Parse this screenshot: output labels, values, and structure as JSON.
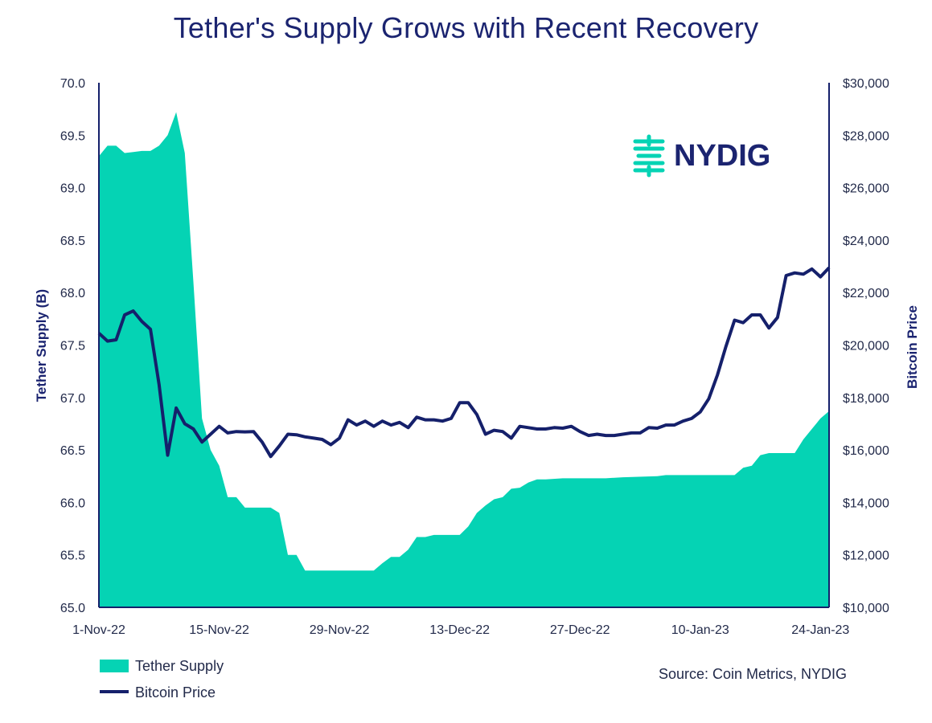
{
  "chart_data": {
    "type": "area",
    "title": "Tether's Supply Grows with Recent Recovery",
    "ylabel_left": "Tether Supply (B)",
    "ylabel_right": "Bitcoin Price",
    "ylim_left": [
      65.0,
      70.0
    ],
    "ylim_right": [
      10000,
      30000
    ],
    "yticks_left": [
      "70.0",
      "69.5",
      "69.0",
      "68.5",
      "68.0",
      "67.5",
      "67.0",
      "66.5",
      "66.0",
      "65.5",
      "65.0"
    ],
    "yticks_right": [
      "$30,000",
      "$28,000",
      "$26,000",
      "$24,000",
      "$22,000",
      "$20,000",
      "$18,000",
      "$16,000",
      "$14,000",
      "$12,000",
      "$10,000"
    ],
    "xticks": [
      "1-Nov-22",
      "15-Nov-22",
      "29-Nov-22",
      "13-Dec-22",
      "27-Dec-22",
      "10-Jan-23",
      "24-Jan-23"
    ],
    "x_start": "2022-11-01",
    "x_end": "2023-01-25",
    "series": [
      {
        "name": "Tether Supply",
        "axis": "left",
        "color": "#05d3b4",
        "points": [
          [
            "2022-11-01",
            69.3
          ],
          [
            "2022-11-02",
            69.4
          ],
          [
            "2022-11-03",
            69.4
          ],
          [
            "2022-11-04",
            69.33
          ],
          [
            "2022-11-05",
            69.34
          ],
          [
            "2022-11-06",
            69.35
          ],
          [
            "2022-11-07",
            69.35
          ],
          [
            "2022-11-08",
            69.4
          ],
          [
            "2022-11-09",
            69.5
          ],
          [
            "2022-11-10",
            69.72
          ],
          [
            "2022-11-11",
            69.33
          ],
          [
            "2022-11-12",
            68.1
          ],
          [
            "2022-11-13",
            66.8
          ],
          [
            "2022-11-14",
            66.5
          ],
          [
            "2022-11-15",
            66.35
          ],
          [
            "2022-11-16",
            66.05
          ],
          [
            "2022-11-17",
            66.05
          ],
          [
            "2022-11-18",
            65.95
          ],
          [
            "2022-11-19",
            65.95
          ],
          [
            "2022-11-20",
            65.95
          ],
          [
            "2022-11-21",
            65.95
          ],
          [
            "2022-11-22",
            65.9
          ],
          [
            "2022-11-23",
            65.5
          ],
          [
            "2022-11-24",
            65.5
          ],
          [
            "2022-11-25",
            65.35
          ],
          [
            "2022-11-26",
            65.35
          ],
          [
            "2022-11-27",
            65.35
          ],
          [
            "2022-11-28",
            65.35
          ],
          [
            "2022-11-29",
            65.35
          ],
          [
            "2022-11-30",
            65.35
          ],
          [
            "2022-12-01",
            65.35
          ],
          [
            "2022-12-02",
            65.35
          ],
          [
            "2022-12-03",
            65.35
          ],
          [
            "2022-12-04",
            65.42
          ],
          [
            "2022-12-05",
            65.48
          ],
          [
            "2022-12-06",
            65.48
          ],
          [
            "2022-12-07",
            65.55
          ],
          [
            "2022-12-08",
            65.67
          ],
          [
            "2022-12-09",
            65.67
          ],
          [
            "2022-12-10",
            65.69
          ],
          [
            "2022-12-11",
            65.69
          ],
          [
            "2022-12-12",
            65.69
          ],
          [
            "2022-12-13",
            65.69
          ],
          [
            "2022-12-14",
            65.77
          ],
          [
            "2022-12-15",
            65.9
          ],
          [
            "2022-12-16",
            65.97
          ],
          [
            "2022-12-17",
            66.03
          ],
          [
            "2022-12-18",
            66.05
          ],
          [
            "2022-12-19",
            66.13
          ],
          [
            "2022-12-20",
            66.14
          ],
          [
            "2022-12-21",
            66.19
          ],
          [
            "2022-12-22",
            66.22
          ],
          [
            "2022-12-23",
            66.22
          ],
          [
            "2022-12-25",
            66.23
          ],
          [
            "2022-12-30",
            66.23
          ],
          [
            "2023-01-01",
            66.24
          ],
          [
            "2023-01-05",
            66.25
          ],
          [
            "2023-01-06",
            66.26
          ],
          [
            "2023-01-10",
            66.26
          ],
          [
            "2023-01-14",
            66.26
          ],
          [
            "2023-01-15",
            66.33
          ],
          [
            "2023-01-16",
            66.35
          ],
          [
            "2023-01-17",
            66.45
          ],
          [
            "2023-01-18",
            66.47
          ],
          [
            "2023-01-19",
            66.47
          ],
          [
            "2023-01-20",
            66.47
          ],
          [
            "2023-01-21",
            66.47
          ],
          [
            "2023-01-22",
            66.6
          ],
          [
            "2023-01-23",
            66.7
          ],
          [
            "2023-01-24",
            66.8
          ],
          [
            "2023-01-25",
            66.87
          ]
        ]
      },
      {
        "name": "Bitcoin Price",
        "axis": "right",
        "color": "#15206b",
        "points": [
          [
            "2022-11-01",
            20450
          ],
          [
            "2022-11-02",
            20150
          ],
          [
            "2022-11-03",
            20200
          ],
          [
            "2022-11-04",
            21150
          ],
          [
            "2022-11-05",
            21300
          ],
          [
            "2022-11-06",
            20900
          ],
          [
            "2022-11-07",
            20600
          ],
          [
            "2022-11-08",
            18500
          ],
          [
            "2022-11-09",
            15800
          ],
          [
            "2022-11-10",
            17600
          ],
          [
            "2022-11-11",
            17000
          ],
          [
            "2022-11-12",
            16800
          ],
          [
            "2022-11-13",
            16300
          ],
          [
            "2022-11-14",
            16600
          ],
          [
            "2022-11-15",
            16900
          ],
          [
            "2022-11-16",
            16650
          ],
          [
            "2022-11-17",
            16700
          ],
          [
            "2022-11-18",
            16690
          ],
          [
            "2022-11-19",
            16700
          ],
          [
            "2022-11-20",
            16300
          ],
          [
            "2022-11-21",
            15750
          ],
          [
            "2022-11-22",
            16150
          ],
          [
            "2022-11-23",
            16600
          ],
          [
            "2022-11-24",
            16580
          ],
          [
            "2022-11-25",
            16500
          ],
          [
            "2022-11-26",
            16450
          ],
          [
            "2022-11-27",
            16400
          ],
          [
            "2022-11-28",
            16200
          ],
          [
            "2022-11-29",
            16450
          ],
          [
            "2022-11-30",
            17150
          ],
          [
            "2022-12-01",
            16950
          ],
          [
            "2022-12-02",
            17100
          ],
          [
            "2022-12-03",
            16900
          ],
          [
            "2022-12-04",
            17100
          ],
          [
            "2022-12-05",
            16950
          ],
          [
            "2022-12-06",
            17050
          ],
          [
            "2022-12-07",
            16850
          ],
          [
            "2022-12-08",
            17250
          ],
          [
            "2022-12-09",
            17150
          ],
          [
            "2022-12-10",
            17150
          ],
          [
            "2022-12-11",
            17100
          ],
          [
            "2022-12-12",
            17200
          ],
          [
            "2022-12-13",
            17800
          ],
          [
            "2022-12-14",
            17800
          ],
          [
            "2022-12-15",
            17350
          ],
          [
            "2022-12-16",
            16600
          ],
          [
            "2022-12-17",
            16750
          ],
          [
            "2022-12-18",
            16700
          ],
          [
            "2022-12-19",
            16450
          ],
          [
            "2022-12-20",
            16900
          ],
          [
            "2022-12-21",
            16850
          ],
          [
            "2022-12-22",
            16800
          ],
          [
            "2022-12-23",
            16800
          ],
          [
            "2022-12-24",
            16850
          ],
          [
            "2022-12-25",
            16830
          ],
          [
            "2022-12-26",
            16900
          ],
          [
            "2022-12-27",
            16700
          ],
          [
            "2022-12-28",
            16550
          ],
          [
            "2022-12-29",
            16600
          ],
          [
            "2022-12-30",
            16550
          ],
          [
            "2022-12-31",
            16550
          ],
          [
            "2023-01-01",
            16600
          ],
          [
            "2023-01-02",
            16650
          ],
          [
            "2023-01-03",
            16650
          ],
          [
            "2023-01-04",
            16850
          ],
          [
            "2023-01-05",
            16830
          ],
          [
            "2023-01-06",
            16950
          ],
          [
            "2023-01-07",
            16950
          ],
          [
            "2023-01-08",
            17100
          ],
          [
            "2023-01-09",
            17200
          ],
          [
            "2023-01-10",
            17450
          ],
          [
            "2023-01-11",
            17950
          ],
          [
            "2023-01-12",
            18850
          ],
          [
            "2023-01-13",
            19950
          ],
          [
            "2023-01-14",
            20950
          ],
          [
            "2023-01-15",
            20850
          ],
          [
            "2023-01-16",
            21150
          ],
          [
            "2023-01-17",
            21150
          ],
          [
            "2023-01-18",
            20650
          ],
          [
            "2023-01-19",
            21050
          ],
          [
            "2023-01-20",
            22650
          ],
          [
            "2023-01-21",
            22750
          ],
          [
            "2023-01-22",
            22700
          ],
          [
            "2023-01-23",
            22900
          ],
          [
            "2023-01-24",
            22600
          ],
          [
            "2023-01-25",
            22950
          ]
        ]
      }
    ],
    "legend": [
      {
        "label": "Tether Supply",
        "marker": "area"
      },
      {
        "label": "Bitcoin Price",
        "marker": "line"
      }
    ],
    "legend_position": "bottom-left",
    "source": "Source: Coin Metrics, NYDIG",
    "logo_text": "NYDIG",
    "grid": false
  }
}
